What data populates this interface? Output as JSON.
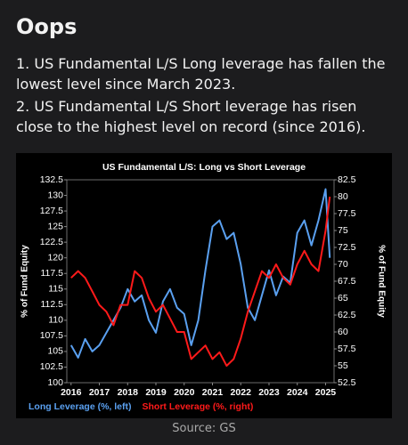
{
  "post": {
    "title": "Oops",
    "points": [
      "1. US Fundamental L/S Long leverage has fallen the lowest level since March 2023.",
      "2. US Fundamental L/S Short leverage has risen close to the highest level on record (since 2016)."
    ],
    "source": "Source: GS"
  },
  "chart_data": {
    "type": "line",
    "title": "US Fundamental L/S: Long vs Short Leverage",
    "y_label": "% of Fund Equity",
    "y2_label": "% of Fund Equity",
    "x": [
      2016,
      2016.25,
      2016.5,
      2016.75,
      2017,
      2017.25,
      2017.5,
      2017.75,
      2018,
      2018.25,
      2018.5,
      2018.75,
      2019,
      2019.25,
      2019.5,
      2019.75,
      2020,
      2020.25,
      2020.5,
      2020.75,
      2021,
      2021.25,
      2021.5,
      2021.75,
      2022,
      2022.25,
      2022.5,
      2022.75,
      2023,
      2023.25,
      2023.5,
      2023.75,
      2024,
      2024.25,
      2024.5,
      2024.75,
      2025,
      2025.15
    ],
    "series": [
      {
        "name": "Long Leverage (%, left)",
        "color": "#5aa0f0",
        "values": [
          106,
          104,
          107,
          105,
          106,
          108,
          110,
          112,
          115,
          113,
          114,
          110,
          108,
          113,
          115,
          112,
          111,
          106,
          110,
          118,
          125,
          126,
          123,
          124,
          119,
          112,
          110,
          114,
          118,
          114,
          117,
          116,
          124,
          126,
          122,
          126,
          131,
          120
        ]
      },
      {
        "name": "Short Leverage (%, right)",
        "color": "#ff1a1a",
        "axis": "y2",
        "values": [
          68,
          69,
          68,
          66,
          64,
          63,
          61,
          64,
          64,
          69,
          68,
          65,
          63,
          64,
          62,
          60,
          60,
          56,
          57,
          58,
          56,
          57,
          55,
          56,
          59,
          63,
          66,
          69,
          68,
          70,
          68,
          67,
          70,
          72,
          70,
          69,
          75,
          80
        ]
      }
    ],
    "xlim": [
      2015.85,
      2025.3
    ],
    "xticks": [
      2016,
      2017,
      2018,
      2019,
      2020,
      2021,
      2022,
      2023,
      2024,
      2025
    ],
    "ylim": [
      100,
      132.5
    ],
    "yticks": [
      100,
      102.5,
      105,
      107.5,
      110,
      112.5,
      115,
      117.5,
      120,
      122.5,
      125,
      127.5,
      130,
      132.5
    ],
    "y2lim": [
      52.5,
      82.5
    ],
    "y2ticks": [
      52.5,
      55,
      57.5,
      60,
      62.5,
      65,
      67.5,
      70,
      72.5,
      75,
      77.5,
      80,
      82.5
    ]
  }
}
